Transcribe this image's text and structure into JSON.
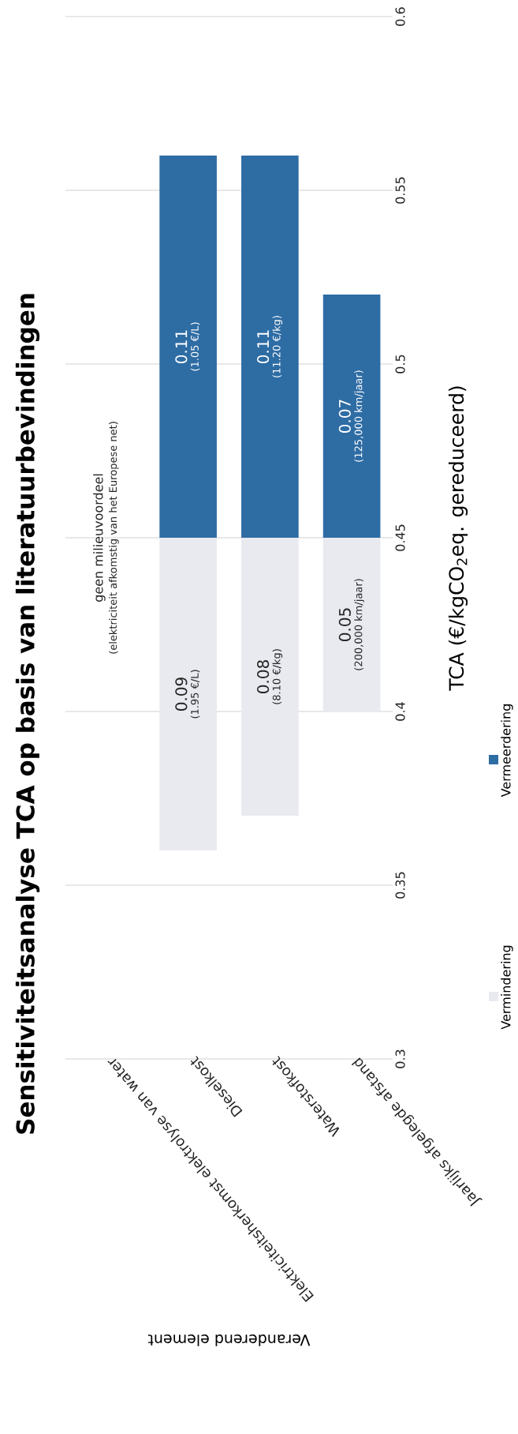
{
  "chart_data": {
    "type": "bar",
    "title": "Sensitiviteitsanalyse TCA op basis van literatuurbevindingen",
    "ylabel": "TCA (€/kgCO$_{2}$eq. gereduceerd)",
    "xlabel": "Veranderend element",
    "categories": [
      "Elektriciteitsherkomst elektrolyse van water",
      "Dieselkost",
      "Waterstofkost",
      "Jaarlijks afgelegde afstand"
    ],
    "series": [
      {
        "name": "Vermindering",
        "color": "#e8eaf0",
        "base": [
          null,
          0.36,
          0.37,
          0.4
        ],
        "values": [
          null,
          0.09,
          0.08,
          0.05
        ]
      },
      {
        "name": "Vermeerdering",
        "color": "#2e6ca4",
        "base": [
          null,
          0.45,
          0.45,
          0.45
        ],
        "values": [
          null,
          0.11,
          0.11,
          0.07
        ]
      }
    ],
    "ylim": [
      0.3,
      0.6
    ],
    "yticks": [
      0.3,
      0.35,
      0.4,
      0.45,
      0.5,
      0.55,
      0.6
    ],
    "grid": "y",
    "legend": "right",
    "data_labels": true,
    "annotations": [
      "geen milieuvoordeel",
      "(elektriciteit afkomstig van het Europese net)",
      "(1.95 €/L)",
      "(8.10 €/kg)",
      "(200,000 km/jaar)",
      "(1.05 €/L)",
      "(11.20 €/kg)",
      "(125,000 km/jaar)"
    ]
  }
}
